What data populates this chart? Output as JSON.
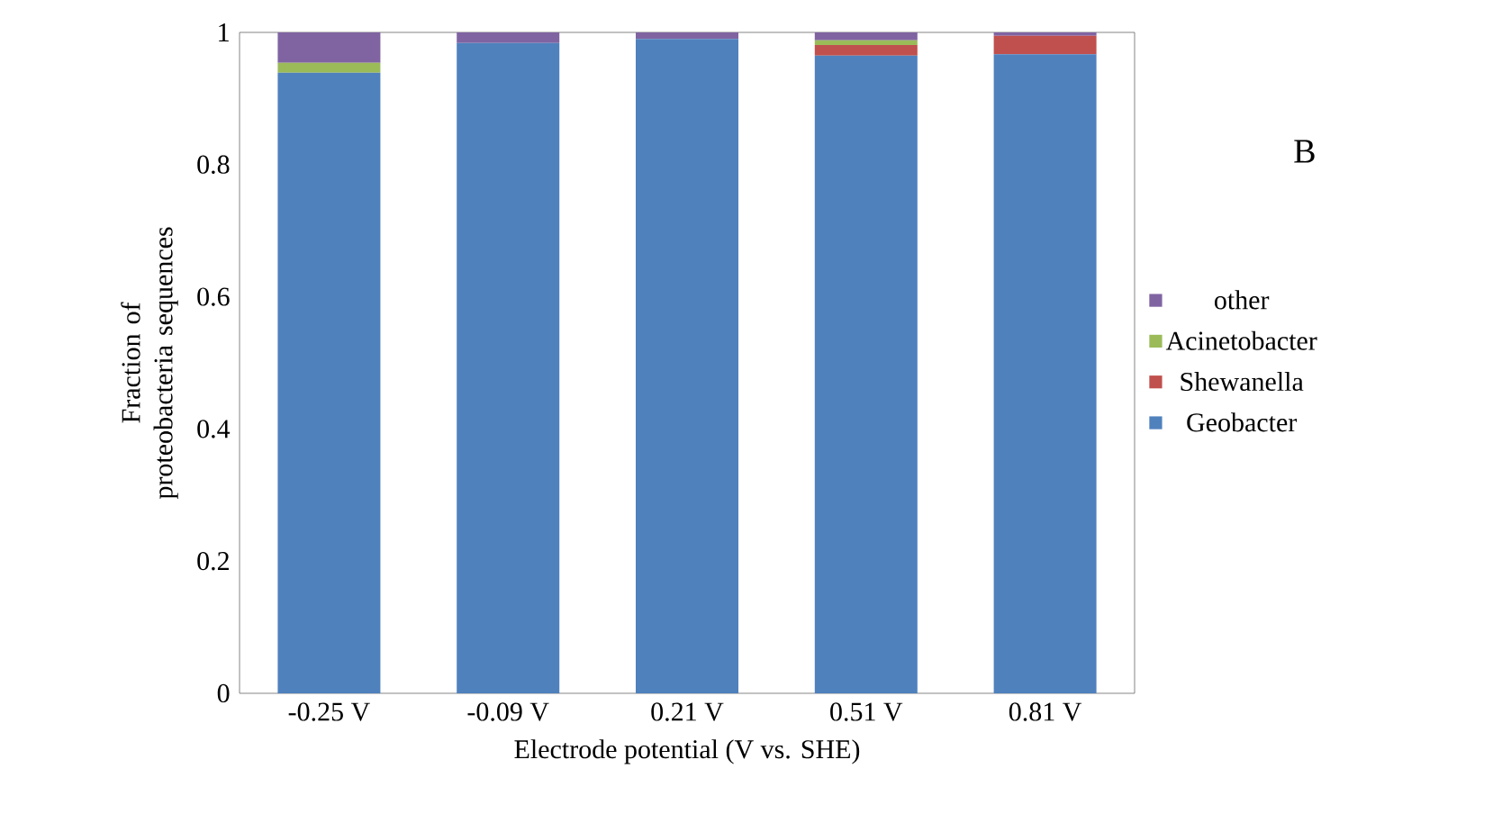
{
  "chart_data": {
    "type": "bar",
    "stacked": true,
    "xlabel": "Electrode potential (V vs. SHE)",
    "ylabel": "Fraction of proteobacteria sequences",
    "annotations": [
      "B"
    ],
    "categories": [
      "-0.25 V",
      "-0.09 V",
      "0.21 V",
      "0.51 V",
      "0.81 V"
    ],
    "series": [
      {
        "name": "Geobacter",
        "color": "#4f81bd",
        "values": [
          0.939,
          0.984,
          0.99,
          0.965,
          0.967
        ]
      },
      {
        "name": "Shewanella",
        "color": "#c0504d",
        "values": [
          0,
          0,
          0,
          0.016,
          0.028
        ]
      },
      {
        "name": "Acinetobacter",
        "color": "#9bbb59",
        "values": [
          0.015,
          0,
          0,
          0.007,
          0
        ]
      },
      {
        "name": "other",
        "color": "#8064a2",
        "values": [
          0.046,
          0.016,
          0.01,
          0.012,
          0.005
        ]
      }
    ],
    "ylim": [
      0,
      1
    ],
    "yticks": [
      0,
      0.2,
      0.4,
      0.6,
      0.8,
      1
    ],
    "legend": "right",
    "grid": false
  }
}
